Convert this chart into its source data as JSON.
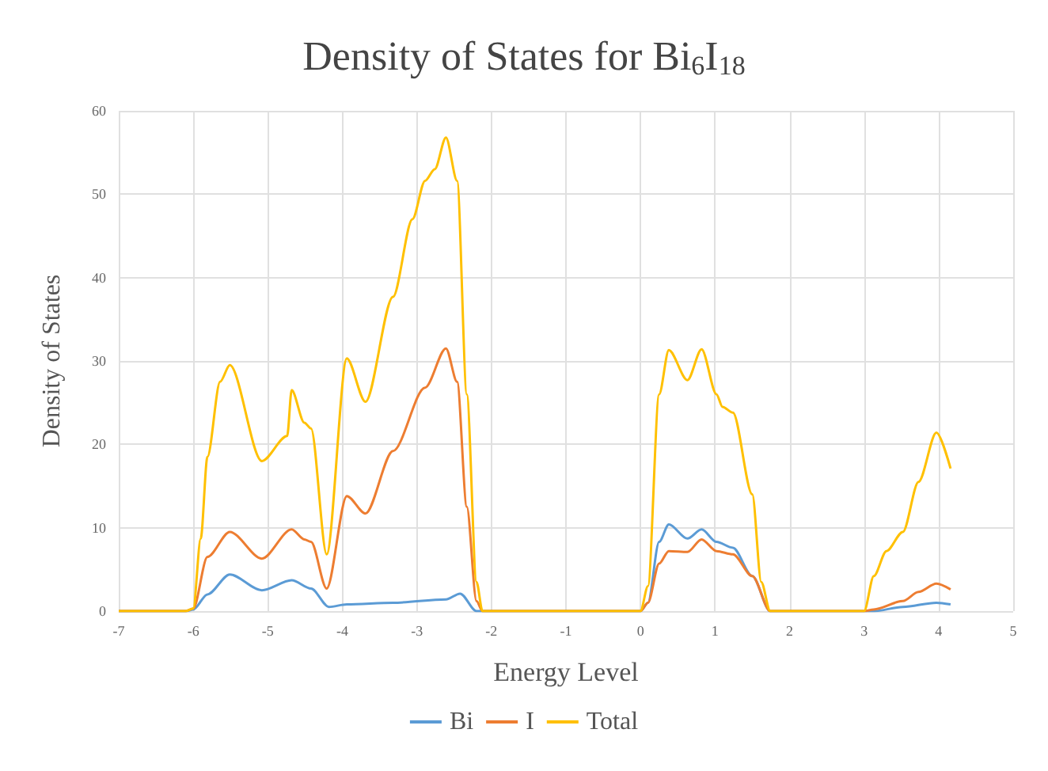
{
  "chart_data": {
    "type": "line",
    "title": "Density of States for Bi$_{6}$I$_{18}$",
    "xlabel": "Energy Level",
    "ylabel": "Density of States",
    "xlim": [
      -7,
      5
    ],
    "xticks": [
      -7,
      -6,
      -5,
      -4,
      -3,
      -2,
      -1,
      0,
      1,
      2,
      3,
      4,
      5
    ],
    "ylim": [
      0,
      60
    ],
    "yticks": [
      0,
      10,
      20,
      30,
      40,
      50,
      60
    ],
    "grid": true,
    "legend": "bottom",
    "marker": "none",
    "line_style": "solid",
    "series": [
      {
        "name": "Bi",
        "color": "#5b9bd5",
        "x": [
          -7,
          -6.1,
          -6,
          -5.81,
          -5.51,
          -5.08,
          -4.68,
          -4.42,
          -4.18,
          -3.94,
          -3.32,
          -2.61,
          -2.42,
          -2.2,
          -2.12,
          0,
          0.1,
          0.25,
          0.38,
          0.63,
          0.82,
          1.02,
          1.24,
          1.5,
          1.74,
          3,
          3.13,
          3.52,
          3.97,
          4.16
        ],
        "values": [
          0,
          0,
          0.2,
          2,
          4.4,
          2.5,
          3.7,
          2.7,
          0.5,
          0.8,
          1,
          1.4,
          2.1,
          0,
          0,
          0,
          1,
          8.3,
          10.4,
          8.7,
          9.8,
          8.3,
          7.6,
          4.2,
          0,
          0,
          0,
          0.5,
          1,
          0.8
        ]
      },
      {
        "name": "I",
        "color": "#ed7d31",
        "x": [
          -7,
          -6.1,
          -6,
          -5.81,
          -5.51,
          -5.08,
          -4.68,
          -4.51,
          -4.42,
          -4.21,
          -3.94,
          -3.69,
          -3.32,
          -2.89,
          -2.61,
          -2.46,
          -2.33,
          -2.2,
          -2.12,
          0,
          0.1,
          0.25,
          0.38,
          0.63,
          0.82,
          1.02,
          1.24,
          1.5,
          1.74,
          3,
          3.13,
          3.52,
          3.73,
          3.97,
          4.16
        ],
        "values": [
          0,
          0,
          0.3,
          6.5,
          9.5,
          6.3,
          9.8,
          8.6,
          8.3,
          2.7,
          13.8,
          11.7,
          19.2,
          26.8,
          31.5,
          27.5,
          12.5,
          1.2,
          0,
          0,
          1,
          5.7,
          7.2,
          7.1,
          8.6,
          7.2,
          6.8,
          4.2,
          0,
          0,
          0.2,
          1.2,
          2.3,
          3.3,
          2.6
        ]
      },
      {
        "name": "Total",
        "color": "#ffc000",
        "x": [
          -7,
          -6.1,
          -6,
          -5.9,
          -5.81,
          -5.64,
          -5.51,
          -5.08,
          -4.74,
          -4.68,
          -4.51,
          -4.42,
          -4.21,
          -3.94,
          -3.69,
          -3.32,
          -3.06,
          -2.89,
          -2.76,
          -2.61,
          -2.46,
          -2.33,
          -2.2,
          -2.12,
          0,
          0.1,
          0.25,
          0.38,
          0.63,
          0.82,
          1.02,
          1.1,
          1.24,
          1.5,
          1.62,
          1.74,
          3,
          3.13,
          3.3,
          3.52,
          3.73,
          3.97,
          4.16
        ],
        "values": [
          0,
          0,
          0.3,
          8.7,
          18.5,
          27.5,
          29.5,
          18,
          21,
          26.5,
          22.6,
          21.9,
          6.8,
          30.3,
          25.1,
          37.7,
          47,
          51.6,
          53,
          56.8,
          51.6,
          26,
          3.5,
          0,
          0,
          3,
          26,
          31.3,
          27.7,
          31.4,
          26,
          24.5,
          23.8,
          14,
          3.5,
          0,
          0,
          4.2,
          7.2,
          9.5,
          15.5,
          21.4,
          17.1
        ]
      }
    ]
  }
}
